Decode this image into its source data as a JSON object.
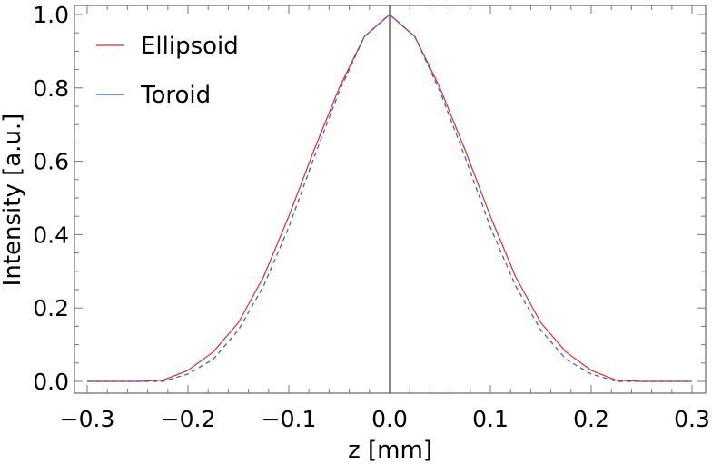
{
  "chart_data": {
    "type": "line",
    "title": "",
    "xlabel": "z [mm]",
    "ylabel": "Intensity [a.u.]",
    "xlim": [
      -0.3,
      0.3
    ],
    "ylim": [
      0.0,
      1.0
    ],
    "x_ticks": [
      "-0.3",
      "-0.2",
      "-0.1",
      "0.0",
      "0.1",
      "0.2",
      "0.3"
    ],
    "y_ticks": [
      "0.0",
      "0.2",
      "0.4",
      "0.6",
      "0.8",
      "1.0"
    ],
    "grid": false,
    "legend_position": "top-left",
    "vertical_reference_line_x": 0.0,
    "x": [
      -0.3,
      -0.25,
      -0.225,
      -0.2,
      -0.175,
      -0.15,
      -0.125,
      -0.1,
      -0.075,
      -0.05,
      -0.025,
      0.0,
      0.025,
      0.05,
      0.075,
      0.1,
      0.125,
      0.15,
      0.175,
      0.2,
      0.225,
      0.25,
      0.3
    ],
    "series": [
      {
        "name": "Ellipsoid",
        "color": "#e8262b",
        "style": "solid",
        "values": [
          0.0,
          0.0,
          0.003,
          0.03,
          0.08,
          0.16,
          0.285,
          0.45,
          0.63,
          0.8,
          0.94,
          1.0,
          0.94,
          0.8,
          0.63,
          0.45,
          0.285,
          0.16,
          0.08,
          0.03,
          0.003,
          0.0,
          0.0
        ]
      },
      {
        "name": "Toroid",
        "color": "#2b55d9",
        "style": "dashed",
        "values": [
          0.0,
          0.0,
          0.0,
          0.02,
          0.06,
          0.14,
          0.26,
          0.42,
          0.61,
          0.79,
          0.94,
          1.0,
          0.94,
          0.79,
          0.61,
          0.42,
          0.26,
          0.14,
          0.06,
          0.02,
          0.0,
          0.0,
          0.0
        ]
      }
    ]
  }
}
